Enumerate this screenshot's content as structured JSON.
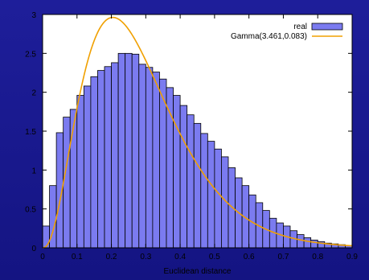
{
  "chart_data": {
    "type": "bar",
    "title": "",
    "xlabel": "Euclidean distance",
    "ylabel": "",
    "xlim": [
      0,
      0.9
    ],
    "ylim": [
      0,
      3
    ],
    "x_ticks": [
      "0",
      "0.1",
      "0.2",
      "0.3",
      "0.4",
      "0.5",
      "0.6",
      "0.7",
      "0.8",
      "0.9"
    ],
    "y_ticks": [
      "0",
      "0.5",
      "1",
      "1.5",
      "2",
      "2.5",
      "3"
    ],
    "grid": false,
    "legend_position": "top-right",
    "series": [
      {
        "name": "real",
        "kind": "histogram",
        "color": "#7b7bf0",
        "edge_color": "#000000",
        "bin_start": 0,
        "bin_width": 0.02,
        "values": [
          0.28,
          0.8,
          1.48,
          1.68,
          1.78,
          1.96,
          2.08,
          2.2,
          2.28,
          2.33,
          2.38,
          2.5,
          2.5,
          2.49,
          2.36,
          2.32,
          2.26,
          2.17,
          2.06,
          1.96,
          1.83,
          1.71,
          1.6,
          1.47,
          1.37,
          1.27,
          1.17,
          1.03,
          0.9,
          0.8,
          0.68,
          0.58,
          0.48,
          0.38,
          0.32,
          0.28,
          0.22,
          0.17,
          0.13,
          0.1,
          0.08,
          0.06,
          0.05,
          0.04,
          0.03
        ]
      },
      {
        "name": "Gamma(3.461,0.083)",
        "kind": "line",
        "color": "#f0a000",
        "shape": 3.461,
        "scale": 0.083
      }
    ]
  }
}
